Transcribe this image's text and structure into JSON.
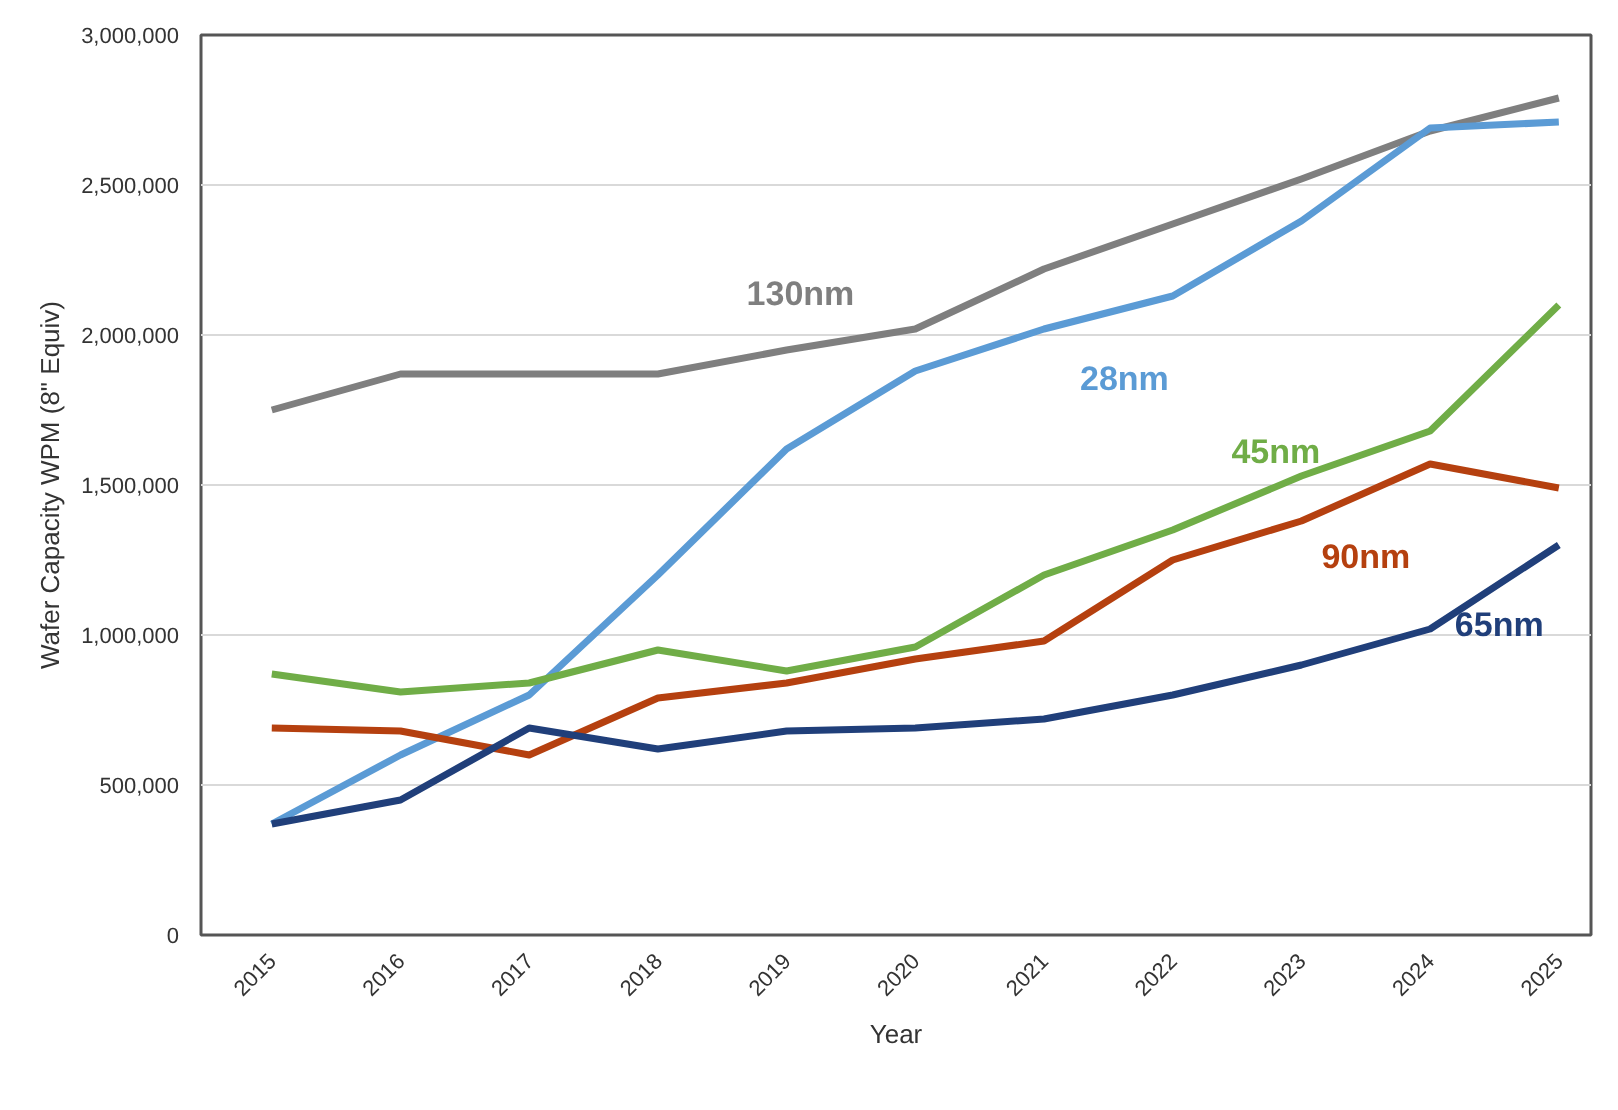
{
  "chart_data": {
    "type": "line",
    "xlabel": "Year",
    "ylabel": "Wafer Capacity WPM (8\" Equiv)",
    "x": [
      2015,
      2016,
      2017,
      2018,
      2019,
      2020,
      2021,
      2022,
      2023,
      2024,
      2025
    ],
    "xlim": [
      2014.45,
      2025.25
    ],
    "xticks": [
      2015,
      2016,
      2017,
      2018,
      2019,
      2020,
      2021,
      2022,
      2023,
      2024,
      2025
    ],
    "ylim": [
      0,
      3000000
    ],
    "yticks": [
      {
        "value": 0,
        "label": "0"
      },
      {
        "value": 500000,
        "label": "500,000"
      },
      {
        "value": 1000000,
        "label": "1,000,000"
      },
      {
        "value": 1500000,
        "label": "1,500,000"
      },
      {
        "value": 2000000,
        "label": "2,000,000"
      },
      {
        "value": 2500000,
        "label": "2,500,000"
      },
      {
        "value": 3000000,
        "label": "3,000,000"
      }
    ],
    "grid": "y",
    "marker": "none",
    "line_style": "solid",
    "series": [
      {
        "name": "130nm",
        "color": "#7f7f7f",
        "values": [
          1750000,
          1870000,
          1870000,
          1870000,
          1950000,
          2020000,
          2220000,
          2370000,
          2520000,
          2680000,
          2790000
        ]
      },
      {
        "name": "28nm",
        "color": "#5b9bd5",
        "values": [
          370000,
          600000,
          800000,
          1200000,
          1620000,
          1880000,
          2020000,
          2130000,
          2380000,
          2690000,
          2710000
        ]
      },
      {
        "name": "45nm",
        "color": "#70ad47",
        "values": [
          870000,
          810000,
          840000,
          950000,
          880000,
          960000,
          1200000,
          1350000,
          1530000,
          1680000,
          2100000
        ]
      },
      {
        "name": "90nm",
        "color": "#b5400f",
        "values": [
          690000,
          680000,
          600000,
          790000,
          840000,
          920000,
          980000,
          1250000,
          1380000,
          1570000,
          1490000
        ]
      },
      {
        "name": "65nm",
        "color": "#203f7a",
        "values": [
          370000,
          450000,
          690000,
          620000,
          680000,
          690000,
          720000,
          800000,
          900000,
          1020000,
          1300000
        ]
      }
    ]
  }
}
